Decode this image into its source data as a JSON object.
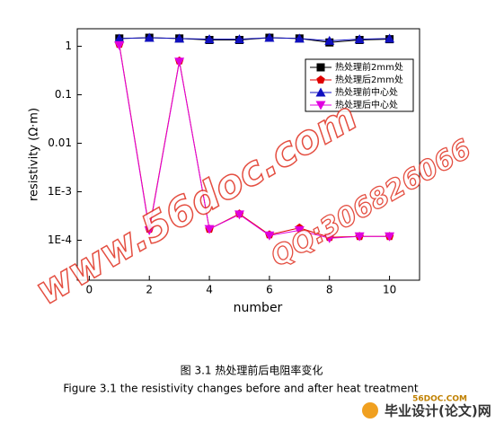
{
  "chart_data": {
    "type": "line",
    "x_label": "number",
    "y_label": "resistivity (Ω·m)",
    "x": [
      1,
      2,
      3,
      4,
      5,
      6,
      7,
      8,
      9,
      10
    ],
    "xlim": [
      -0.4,
      11
    ],
    "xticks": [
      0,
      2,
      4,
      6,
      8,
      10
    ],
    "ylim": [
      1.5e-05,
      2.3
    ],
    "log_y": true,
    "yticks": [
      1,
      0.1,
      0.01,
      {
        "value": 0.001,
        "label": "1E-3"
      },
      {
        "value": 0.0001,
        "label": "1E-4"
      }
    ],
    "legend_position": "upper right",
    "series": [
      {
        "name": "热处理前2mm处",
        "color": "#000000",
        "marker": "square",
        "values": [
          1.45,
          1.5,
          1.45,
          1.35,
          1.35,
          1.5,
          1.45,
          1.2,
          1.35,
          1.4
        ]
      },
      {
        "name": "热处理后2mm处",
        "color": "#e00000",
        "marker": "pentagon",
        "values": [
          1.1,
          0.00017,
          0.5,
          0.00017,
          0.00035,
          0.00013,
          0.00018,
          0.000115,
          0.00012,
          0.00012
        ]
      },
      {
        "name": "热处理前中心处",
        "color": "#1010c0",
        "marker": "triangle-up",
        "values": [
          1.45,
          1.5,
          1.45,
          1.4,
          1.4,
          1.5,
          1.45,
          1.3,
          1.4,
          1.45
        ]
      },
      {
        "name": "热处理后中心处",
        "color": "#e000e0",
        "marker": "triangle-down",
        "values": [
          1.05,
          0.00016,
          0.48,
          0.00017,
          0.00034,
          0.000125,
          0.00016,
          0.00011,
          0.00012,
          0.00012
        ]
      }
    ]
  },
  "caption": {
    "chinese": "图 3.1  热处理前后电阻率变化",
    "english": "Figure 3.1 the resistivity changes before and after heat treatment"
  },
  "watermarks": {
    "site": "www.56doc.com",
    "qq": "QQ:306826066",
    "logo_domain": "56DOC.COM",
    "logo_name": "毕业设计(论文)网"
  }
}
